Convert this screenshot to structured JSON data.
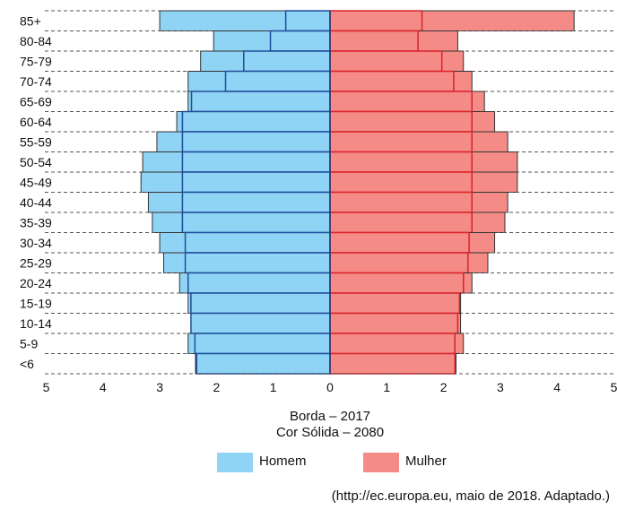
{
  "chart_data": {
    "type": "bar",
    "orientation": "horizontal-population-pyramid",
    "categories": [
      "85+",
      "80-84",
      "75-79",
      "70-74",
      "65-69",
      "60-64",
      "55-59",
      "50-54",
      "45-49",
      "40-44",
      "35-39",
      "30-34",
      "25-29",
      "20-24",
      "15-19",
      "10-14",
      "5-9",
      "<6"
    ],
    "series": [
      {
        "name": "Homem",
        "year": "2017",
        "style": "Borda",
        "side": "left",
        "values": [
          0.78,
          1.05,
          1.52,
          1.84,
          2.44,
          2.6,
          2.6,
          2.6,
          2.6,
          2.6,
          2.6,
          2.55,
          2.55,
          2.5,
          2.45,
          2.45,
          2.38,
          2.35
        ]
      },
      {
        "name": "Mulher",
        "year": "2017",
        "style": "Borda",
        "side": "right",
        "values": [
          1.62,
          1.55,
          1.97,
          2.18,
          2.5,
          2.5,
          2.5,
          2.5,
          2.5,
          2.5,
          2.5,
          2.45,
          2.43,
          2.35,
          2.28,
          2.25,
          2.2,
          2.2
        ]
      },
      {
        "name": "Homem",
        "year": "2080",
        "style": "Cor Sólida",
        "side": "left",
        "values": [
          3.0,
          2.05,
          2.28,
          2.5,
          2.5,
          2.7,
          3.05,
          3.3,
          3.33,
          3.2,
          3.13,
          3.0,
          2.93,
          2.65,
          2.5,
          2.42,
          2.5,
          2.37
        ]
      },
      {
        "name": "Mulher",
        "year": "2080",
        "style": "Cor Sólida",
        "side": "right",
        "values": [
          4.3,
          2.25,
          2.35,
          2.5,
          2.72,
          2.9,
          3.13,
          3.3,
          3.3,
          3.13,
          3.08,
          2.9,
          2.78,
          2.5,
          2.3,
          2.3,
          2.35,
          2.22
        ]
      }
    ],
    "x_ticks_left": [
      "5",
      "4",
      "3",
      "2",
      "1",
      "0"
    ],
    "x_ticks_right": [
      "1",
      "2",
      "3",
      "4",
      "5"
    ],
    "xlim": [
      -5,
      5
    ],
    "grid": "dashed horizontal",
    "notes": [
      "Borda – 2017",
      "Cor Sólida – 2080"
    ],
    "legend": [
      {
        "label": "Homem",
        "color": "#8fd3f5"
      },
      {
        "label": "Mulher",
        "color": "#f48b86"
      }
    ],
    "colors": {
      "male_fill": "#8fd3f5",
      "female_fill": "#f48b86",
      "male_border": "#1f4e9c",
      "female_border": "#d9232d",
      "outline_2080": "#333333",
      "grid": "#555555"
    }
  },
  "source": "(http://ec.europa.eu, maio de 2018. Adaptado.)"
}
